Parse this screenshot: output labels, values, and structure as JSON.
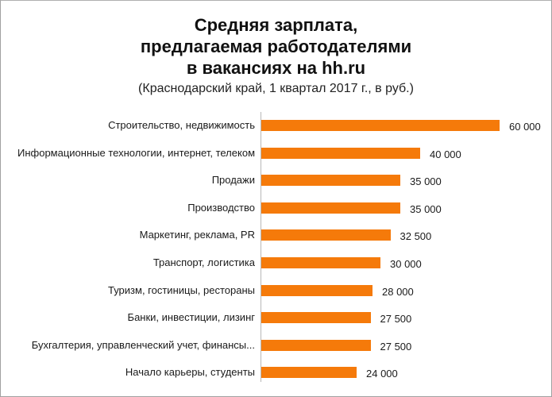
{
  "chart_data": {
    "type": "bar",
    "orientation": "horizontal",
    "title": "Средняя зарплата, предлагаемая работодателями в вакансиях на hh.ru",
    "title_lines": [
      "Средняя зарплата,",
      "предлагаемая работодателями",
      "в вакансиях на hh.ru"
    ],
    "subtitle": "(Краснодарский край, 1 квартал 2017 г., в руб.)",
    "xlabel": "",
    "ylabel": "",
    "grid": false,
    "legend": null,
    "bar_color": "#f57a0a",
    "categories": [
      "Строительство, недвижимость",
      "Информационные технологии, интернет, телеком",
      "Продажи",
      "Производство",
      "Маркетинг, реклама, PR",
      "Транспорт, логистика",
      "Туризм, гостиницы, рестораны",
      "Банки, инвестиции, лизинг",
      "Бухгалтерия, управленческий учет, финансы...",
      "Начало карьеры, студенты"
    ],
    "values": [
      60000,
      40000,
      35000,
      35000,
      32500,
      30000,
      28000,
      27500,
      27500,
      24000
    ],
    "value_labels": [
      "60 000",
      "40 000",
      "35 000",
      "35 000",
      "32 500",
      "30 000",
      "28 000",
      "27 500",
      "27 500",
      "24 000"
    ]
  }
}
